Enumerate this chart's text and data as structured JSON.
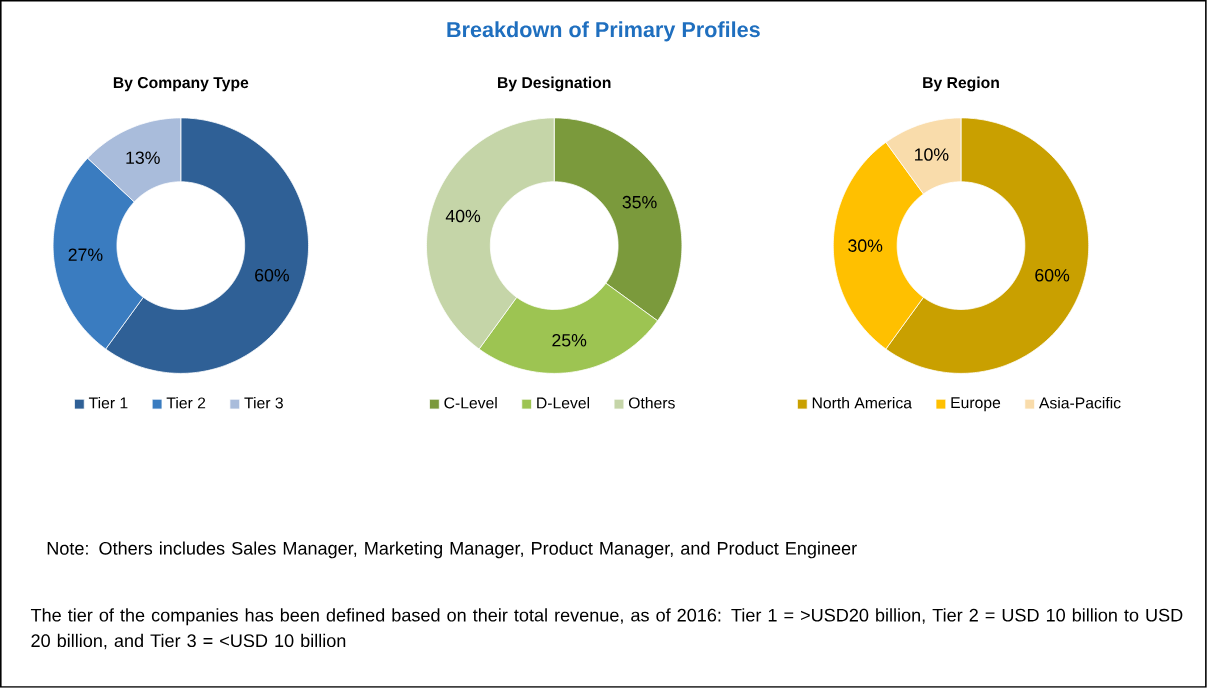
{
  "chart_data": [
    {
      "type": "other",
      "title": "Breakdown of Primary Profiles",
      "annotations": [
        "Note: Others includes Sales Manager, Marketing Manager, Product Manager, and Product Engineer",
        "The tier of the companies has been defined based on their total revenue, as of 2016: Tier 1 = >USD20 billion, Tier 2 = USD 10 billion to USD 20 billion, and Tier 3 = <USD 10 billion"
      ]
    },
    {
      "type": "donut",
      "title": "By Company Type",
      "categories": [
        "Tier 1",
        "Tier 2",
        "Tier 3"
      ],
      "values": [
        60,
        27,
        13
      ],
      "colors": [
        "#2f6096",
        "#3a7cc0",
        "#a9bcdb"
      ],
      "value_labels": [
        "60%",
        "27%",
        "13%"
      ],
      "legend": "bottom"
    },
    {
      "type": "donut",
      "title": "By Designation",
      "categories": [
        "C-Level",
        "D-Level",
        "Others"
      ],
      "values": [
        35,
        25,
        40
      ],
      "colors": [
        "#7b9a3c",
        "#9dc452",
        "#c5d5a8"
      ],
      "value_labels": [
        "35%",
        "25%",
        "40%"
      ],
      "legend": "bottom"
    },
    {
      "type": "donut",
      "title": "By Region",
      "categories": [
        "North America",
        "Europe",
        "Asia-Pacific"
      ],
      "values": [
        60,
        30,
        10
      ],
      "colors": [
        "#c9a000",
        "#ffc000",
        "#f9dcab"
      ],
      "value_labels": [
        "60%",
        "30%",
        "10%"
      ],
      "legend": "bottom"
    }
  ]
}
